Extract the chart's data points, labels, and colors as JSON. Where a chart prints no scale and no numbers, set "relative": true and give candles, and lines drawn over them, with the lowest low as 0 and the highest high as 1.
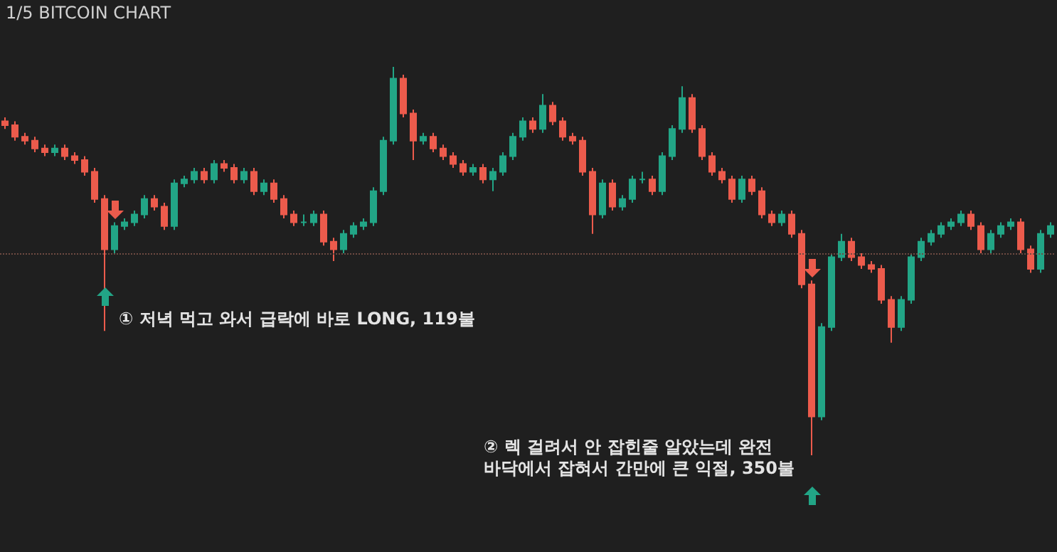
{
  "chart_data": {
    "type": "candlestick",
    "title": "1/5 BITCOIN CHART",
    "relative": true,
    "categories": [
      null,
      null,
      null,
      null,
      null,
      null,
      null,
      null,
      null,
      null,
      null,
      null,
      null,
      null,
      null,
      null,
      null,
      null,
      null,
      null,
      null,
      null,
      null,
      null,
      null,
      null,
      null,
      null,
      null,
      null,
      null,
      null,
      null,
      null,
      null,
      null,
      null,
      null,
      null,
      null,
      null,
      null,
      null,
      null,
      null,
      null,
      null,
      null,
      null,
      null,
      null,
      null,
      null,
      null,
      null,
      null,
      null,
      null,
      null,
      null,
      null,
      null,
      null,
      null,
      null,
      null,
      null,
      null,
      null,
      null,
      null,
      null,
      null,
      null,
      null,
      null,
      null,
      null,
      null,
      null,
      null,
      null,
      null,
      null,
      null,
      null,
      null,
      null,
      null,
      null,
      null,
      null,
      null,
      null,
      null,
      null,
      null,
      null,
      null,
      null,
      null,
      null,
      null,
      null,
      null,
      null
    ],
    "colors": [
      "#ec5b4c",
      "#ec5b4c",
      "#ec5b4c",
      "#ec5b4c",
      "#ec5b4c",
      "#22a586",
      "#ec5b4c",
      "#ec5b4c",
      "#ec5b4c",
      "#ec5b4c",
      "#ec5b4c",
      "#22a586",
      "#22a586",
      "#22a586",
      "#22a586",
      "#ec5b4c",
      "#ec5b4c",
      "#22a586",
      "#22a586",
      "#22a586",
      "#ec5b4c",
      "#22a586",
      "#ec5b4c",
      "#ec5b4c",
      "#22a586",
      "#ec5b4c",
      "#22a586",
      "#ec5b4c",
      "#ec5b4c",
      "#ec5b4c",
      "#22a586",
      "#22a586",
      "#ec5b4c",
      "#ec5b4c",
      "#22a586",
      "#22a586",
      "#22a586",
      "#22a586",
      "#22a586",
      "#22a586",
      "#ec5b4c",
      "#ec5b4c",
      "#22a586",
      "#ec5b4c",
      "#ec5b4c",
      "#ec5b4c",
      "#ec5b4c",
      "#22a586",
      "#ec5b4c",
      "#22a586",
      "#22a586",
      "#22a586",
      "#22a586",
      "#ec5b4c",
      "#22a586",
      "#ec5b4c",
      "#ec5b4c",
      "#ec5b4c",
      "#ec5b4c",
      "#ec5b4c",
      "#22a586",
      "#ec5b4c",
      "#22a586",
      "#22a586",
      "#22a586",
      "#ec5b4c",
      "#22a586",
      "#22a586",
      "#22a586",
      "#ec5b4c",
      "#ec5b4c",
      "#ec5b4c",
      "#ec5b4c",
      "#ec5b4c",
      "#22a586",
      "#ec5b4c",
      "#ec5b4c",
      "#ec5b4c",
      "#22a586",
      "#ec5b4c",
      "#ec5b4c",
      "#ec5b4c",
      "#22a586",
      "#22a586",
      "#22a586",
      "#ec5b4c",
      "#ec5b4c",
      "#ec5b4c",
      "#ec5b4c",
      "#ec5b4c",
      "#22a586",
      "#22a586",
      "#22a586",
      "#22a586",
      "#22a586",
      "#22a586",
      "#22a586",
      "#ec5b4c",
      "#ec5b4c",
      "#22a586",
      "#22a586",
      "#22a586",
      "#ec5b4c",
      "#ec5b4c",
      "#22a586",
      "#22a586"
    ],
    "ohlc": [
      [
        0.86,
        0.87,
        0.84,
        0.85
      ],
      [
        0.85,
        0.86,
        0.81,
        0.82
      ],
      [
        0.82,
        0.83,
        0.8,
        0.81
      ],
      [
        0.81,
        0.82,
        0.78,
        0.79
      ],
      [
        0.79,
        0.8,
        0.77,
        0.78
      ],
      [
        0.78,
        0.8,
        0.77,
        0.79
      ],
      [
        0.79,
        0.8,
        0.76,
        0.77
      ],
      [
        0.77,
        0.78,
        0.75,
        0.76
      ],
      [
        0.76,
        0.77,
        0.72,
        0.73
      ],
      [
        0.73,
        0.74,
        0.65,
        0.66
      ],
      [
        0.66,
        0.67,
        0.32,
        0.53
      ],
      [
        0.53,
        0.6,
        0.52,
        0.59
      ],
      [
        0.59,
        0.61,
        0.58,
        0.6
      ],
      [
        0.6,
        0.63,
        0.59,
        0.62
      ],
      [
        0.62,
        0.67,
        0.61,
        0.66
      ],
      [
        0.66,
        0.67,
        0.63,
        0.64
      ],
      [
        0.64,
        0.65,
        0.58,
        0.59
      ],
      [
        0.59,
        0.71,
        0.58,
        0.7
      ],
      [
        0.7,
        0.72,
        0.69,
        0.71
      ],
      [
        0.71,
        0.74,
        0.7,
        0.73
      ],
      [
        0.73,
        0.74,
        0.7,
        0.71
      ],
      [
        0.71,
        0.76,
        0.7,
        0.75
      ],
      [
        0.75,
        0.76,
        0.73,
        0.74
      ],
      [
        0.74,
        0.75,
        0.7,
        0.71
      ],
      [
        0.71,
        0.74,
        0.7,
        0.73
      ],
      [
        0.73,
        0.74,
        0.67,
        0.68
      ],
      [
        0.68,
        0.71,
        0.67,
        0.7
      ],
      [
        0.7,
        0.71,
        0.65,
        0.66
      ],
      [
        0.66,
        0.67,
        0.61,
        0.62
      ],
      [
        0.62,
        0.63,
        0.59,
        0.6
      ],
      [
        0.6,
        0.62,
        0.59,
        0.6
      ],
      [
        0.6,
        0.63,
        0.59,
        0.62
      ],
      [
        0.62,
        0.63,
        0.54,
        0.55
      ],
      [
        0.55,
        0.56,
        0.5,
        0.53
      ],
      [
        0.53,
        0.58,
        0.52,
        0.57
      ],
      [
        0.57,
        0.6,
        0.56,
        0.59
      ],
      [
        0.59,
        0.61,
        0.58,
        0.6
      ],
      [
        0.6,
        0.69,
        0.59,
        0.68
      ],
      [
        0.68,
        0.82,
        0.67,
        0.81
      ],
      [
        0.81,
        1.0,
        0.8,
        0.97
      ],
      [
        0.97,
        0.98,
        0.87,
        0.88
      ],
      [
        0.88,
        0.89,
        0.76,
        0.81
      ],
      [
        0.81,
        0.83,
        0.8,
        0.82
      ],
      [
        0.82,
        0.83,
        0.78,
        0.79
      ],
      [
        0.79,
        0.8,
        0.76,
        0.77
      ],
      [
        0.77,
        0.78,
        0.74,
        0.75
      ],
      [
        0.75,
        0.76,
        0.72,
        0.73
      ],
      [
        0.73,
        0.75,
        0.72,
        0.74
      ],
      [
        0.74,
        0.75,
        0.7,
        0.71
      ],
      [
        0.71,
        0.74,
        0.68,
        0.73
      ],
      [
        0.73,
        0.78,
        0.72,
        0.77
      ],
      [
        0.77,
        0.83,
        0.76,
        0.82
      ],
      [
        0.82,
        0.87,
        0.81,
        0.86
      ],
      [
        0.86,
        0.87,
        0.83,
        0.84
      ],
      [
        0.84,
        0.93,
        0.83,
        0.9
      ],
      [
        0.9,
        0.91,
        0.85,
        0.86
      ],
      [
        0.86,
        0.87,
        0.81,
        0.82
      ],
      [
        0.82,
        0.83,
        0.8,
        0.81
      ],
      [
        0.81,
        0.82,
        0.72,
        0.73
      ],
      [
        0.73,
        0.74,
        0.57,
        0.62
      ],
      [
        0.62,
        0.71,
        0.61,
        0.7
      ],
      [
        0.7,
        0.71,
        0.63,
        0.64
      ],
      [
        0.64,
        0.67,
        0.63,
        0.66
      ],
      [
        0.66,
        0.72,
        0.65,
        0.71
      ],
      [
        0.71,
        0.73,
        0.7,
        0.71
      ],
      [
        0.71,
        0.72,
        0.67,
        0.68
      ],
      [
        0.68,
        0.78,
        0.67,
        0.77
      ],
      [
        0.77,
        0.85,
        0.76,
        0.84
      ],
      [
        0.84,
        0.95,
        0.83,
        0.92
      ],
      [
        0.92,
        0.93,
        0.83,
        0.84
      ],
      [
        0.84,
        0.85,
        0.76,
        0.77
      ],
      [
        0.77,
        0.78,
        0.72,
        0.73
      ],
      [
        0.73,
        0.74,
        0.7,
        0.71
      ],
      [
        0.71,
        0.72,
        0.65,
        0.66
      ],
      [
        0.66,
        0.72,
        0.65,
        0.71
      ],
      [
        0.71,
        0.72,
        0.67,
        0.68
      ],
      [
        0.68,
        0.69,
        0.61,
        0.62
      ],
      [
        0.62,
        0.63,
        0.59,
        0.6
      ],
      [
        0.6,
        0.63,
        0.59,
        0.62
      ],
      [
        0.62,
        0.63,
        0.56,
        0.57
      ],
      [
        0.57,
        0.58,
        0.43,
        0.44
      ],
      [
        0.44,
        0.45,
        0.0,
        0.1
      ],
      [
        0.1,
        0.34,
        0.09,
        0.33
      ],
      [
        0.33,
        0.52,
        0.32,
        0.51
      ],
      [
        0.51,
        0.57,
        0.5,
        0.55
      ],
      [
        0.55,
        0.56,
        0.5,
        0.51
      ],
      [
        0.51,
        0.52,
        0.48,
        0.49
      ],
      [
        0.49,
        0.5,
        0.47,
        0.48
      ],
      [
        0.48,
        0.49,
        0.39,
        0.4
      ],
      [
        0.4,
        0.41,
        0.29,
        0.33
      ],
      [
        0.33,
        0.41,
        0.32,
        0.4
      ],
      [
        0.4,
        0.52,
        0.39,
        0.51
      ],
      [
        0.51,
        0.56,
        0.5,
        0.55
      ],
      [
        0.55,
        0.58,
        0.54,
        0.57
      ],
      [
        0.57,
        0.6,
        0.56,
        0.59
      ],
      [
        0.59,
        0.61,
        0.58,
        0.6
      ],
      [
        0.6,
        0.63,
        0.59,
        0.62
      ],
      [
        0.62,
        0.63,
        0.58,
        0.59
      ],
      [
        0.59,
        0.6,
        0.52,
        0.53
      ],
      [
        0.53,
        0.58,
        0.52,
        0.57
      ],
      [
        0.57,
        0.6,
        0.56,
        0.59
      ],
      [
        0.59,
        0.61,
        0.58,
        0.6
      ],
      [
        0.6,
        0.61,
        0.52,
        0.53
      ],
      [
        0.53,
        0.54,
        0.47,
        0.48
      ],
      [
        0.48,
        0.58,
        0.47,
        0.57
      ],
      [
        0.57,
        0.6,
        0.56,
        0.59
      ]
    ],
    "ref_lines": [
      {
        "axis": "y",
        "value": 0.52,
        "line_style": "dotted",
        "color": "#6e4a42"
      }
    ],
    "annotations": [
      "① 저녁 먹고 와서 급락에 바로 LONG, 119불",
      "② 렉 걸려서 안 잡힌줄 알았는데 완전\n바닥에서 잡혀서 간만에 큰 익절, 350불"
    ]
  }
}
